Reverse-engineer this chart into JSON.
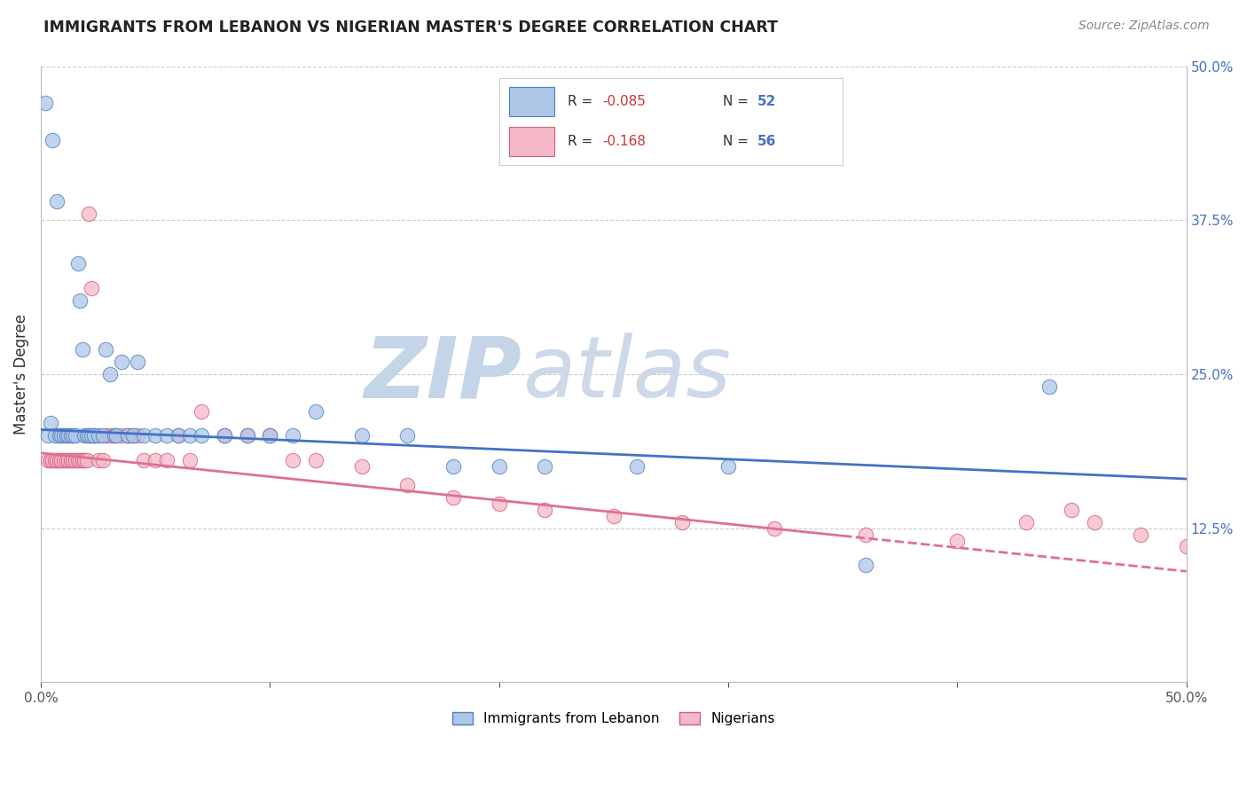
{
  "title": "IMMIGRANTS FROM LEBANON VS NIGERIAN MASTER'S DEGREE CORRELATION CHART",
  "source": "Source: ZipAtlas.com",
  "ylabel": "Master's Degree",
  "xlim": [
    0.0,
    0.5
  ],
  "ylim": [
    0.0,
    0.5
  ],
  "xtick_vals": [
    0.0,
    0.1,
    0.2,
    0.3,
    0.4,
    0.5
  ],
  "ytick_vals": [
    0.0,
    0.125,
    0.25,
    0.375,
    0.5
  ],
  "blue_R": -0.085,
  "blue_N": 52,
  "pink_R": -0.168,
  "pink_N": 56,
  "blue_fill": "#aec6e8",
  "blue_edge": "#5080c0",
  "blue_line": "#4472c4",
  "pink_fill": "#f5b8c8",
  "pink_edge": "#d06080",
  "pink_line": "#e07090",
  "watermark_zip": "ZIP",
  "watermark_atlas": "atlas",
  "watermark_zip_color": "#c5d5e8",
  "watermark_atlas_color": "#cdd8e8",
  "legend_bottom_blue": "Immigrants from Lebanon",
  "legend_bottom_pink": "Nigerians",
  "ytick_color": "#4472c4",
  "title_color": "#222222",
  "source_color": "#888888",
  "blue_x": [
    0.002,
    0.003,
    0.004,
    0.005,
    0.006,
    0.007,
    0.008,
    0.009,
    0.01,
    0.011,
    0.012,
    0.013,
    0.014,
    0.015,
    0.016,
    0.017,
    0.018,
    0.019,
    0.02,
    0.021,
    0.022,
    0.023,
    0.025,
    0.027,
    0.028,
    0.03,
    0.032,
    0.033,
    0.035,
    0.038,
    0.04,
    0.042,
    0.045,
    0.05,
    0.055,
    0.06,
    0.065,
    0.07,
    0.08,
    0.09,
    0.1,
    0.11,
    0.12,
    0.14,
    0.16,
    0.18,
    0.2,
    0.22,
    0.26,
    0.3,
    0.36,
    0.44
  ],
  "blue_y": [
    0.47,
    0.2,
    0.21,
    0.44,
    0.2,
    0.39,
    0.2,
    0.2,
    0.2,
    0.2,
    0.2,
    0.2,
    0.2,
    0.2,
    0.34,
    0.31,
    0.27,
    0.2,
    0.2,
    0.2,
    0.2,
    0.2,
    0.2,
    0.2,
    0.27,
    0.25,
    0.2,
    0.2,
    0.26,
    0.2,
    0.2,
    0.26,
    0.2,
    0.2,
    0.2,
    0.2,
    0.2,
    0.2,
    0.2,
    0.2,
    0.2,
    0.2,
    0.22,
    0.2,
    0.2,
    0.175,
    0.175,
    0.175,
    0.175,
    0.175,
    0.095,
    0.24
  ],
  "pink_x": [
    0.003,
    0.004,
    0.005,
    0.006,
    0.007,
    0.008,
    0.009,
    0.01,
    0.011,
    0.012,
    0.013,
    0.014,
    0.015,
    0.016,
    0.017,
    0.018,
    0.019,
    0.02,
    0.021,
    0.022,
    0.023,
    0.025,
    0.027,
    0.028,
    0.03,
    0.032,
    0.035,
    0.038,
    0.04,
    0.042,
    0.045,
    0.05,
    0.055,
    0.06,
    0.065,
    0.07,
    0.08,
    0.09,
    0.1,
    0.11,
    0.12,
    0.14,
    0.16,
    0.18,
    0.2,
    0.22,
    0.25,
    0.28,
    0.32,
    0.36,
    0.4,
    0.43,
    0.45,
    0.46,
    0.48,
    0.5
  ],
  "pink_y": [
    0.18,
    0.18,
    0.18,
    0.18,
    0.18,
    0.18,
    0.18,
    0.18,
    0.18,
    0.18,
    0.18,
    0.18,
    0.18,
    0.18,
    0.18,
    0.18,
    0.18,
    0.18,
    0.38,
    0.32,
    0.2,
    0.18,
    0.18,
    0.2,
    0.2,
    0.2,
    0.2,
    0.2,
    0.2,
    0.2,
    0.18,
    0.18,
    0.18,
    0.2,
    0.18,
    0.22,
    0.2,
    0.2,
    0.2,
    0.18,
    0.18,
    0.175,
    0.16,
    0.15,
    0.145,
    0.14,
    0.135,
    0.13,
    0.125,
    0.12,
    0.115,
    0.13,
    0.14,
    0.13,
    0.12,
    0.11
  ],
  "blue_line_x0": 0.0,
  "blue_line_x1": 0.5,
  "blue_line_y0": 0.205,
  "blue_line_y1": 0.165,
  "pink_line_x0": 0.0,
  "pink_line_x1": 0.5,
  "pink_line_y0": 0.186,
  "pink_line_y1": 0.09
}
